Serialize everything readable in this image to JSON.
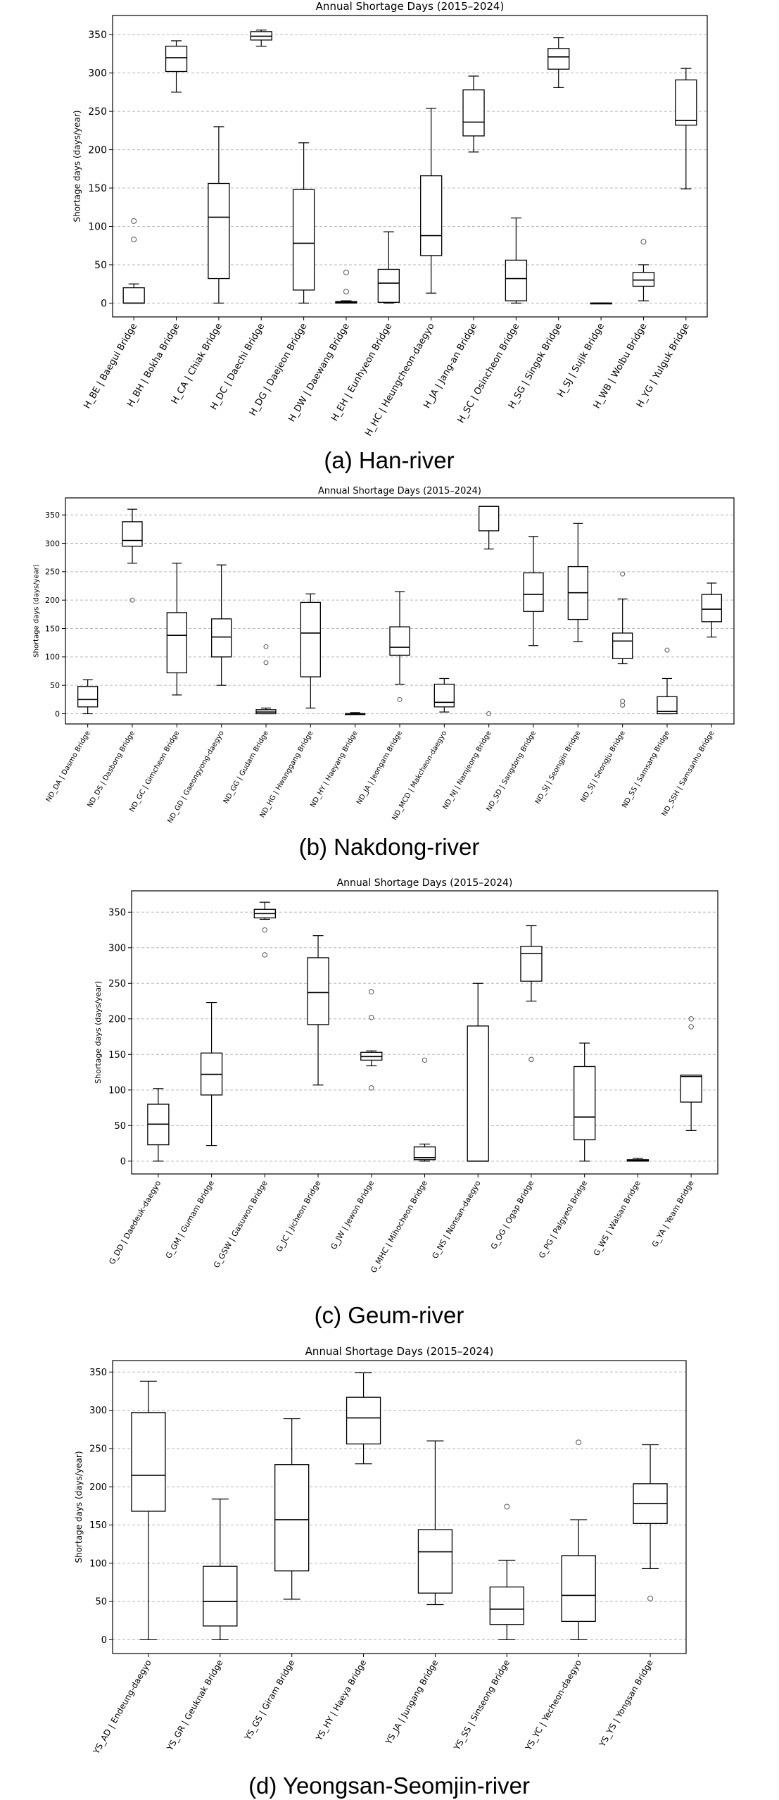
{
  "chart_data": [
    {
      "type": "box",
      "title": "Annual Shortage Days (2015–2024)",
      "ylabel": "Shortage days (days/year)",
      "ylim": [
        -18,
        375
      ],
      "yticks": [
        0,
        50,
        100,
        150,
        200,
        250,
        300,
        350
      ],
      "grid": "horizontal dashed",
      "caption": "(a)  Han-river",
      "categories": [
        "H_BE | Baegui Bridge",
        "H_BH | Bokha Bridge",
        "H_CA | Chiak Bridge",
        "H_DC | Daechi Bridge",
        "H_DG | Daejeon Bridge",
        "H_DW | Daewang Bridge",
        "H_EH | Eunhyeon Bridge",
        "H_HC | Heungcheon-daegyo",
        "H_JA | Jang-an Bridge",
        "H_SC | Osincheon Bridge",
        "H_SG | Singok Bridge",
        "H_SJ | Sujik Bridge",
        "H_WB | Wolbu Bridge",
        "H_YG | Yulguk Bridge"
      ],
      "boxes": [
        {
          "whislo": 0,
          "q1": 0,
          "med": 0,
          "q3": 20,
          "whishi": 25,
          "fliers": [
            83,
            107
          ]
        },
        {
          "whislo": 275,
          "q1": 302,
          "med": 320,
          "q3": 335,
          "whishi": 342,
          "fliers": []
        },
        {
          "whislo": 0,
          "q1": 32,
          "med": 112,
          "q3": 156,
          "whishi": 230,
          "fliers": []
        },
        {
          "whislo": 335,
          "q1": 343,
          "med": 348,
          "q3": 354,
          "whishi": 356,
          "fliers": []
        },
        {
          "whislo": 0,
          "q1": 17,
          "med": 78,
          "q3": 148,
          "whishi": 209,
          "fliers": []
        },
        {
          "whislo": 0,
          "q1": 0,
          "med": 1,
          "q3": 2,
          "whishi": 3,
          "fliers": [
            15,
            40
          ]
        },
        {
          "whislo": 0,
          "q1": 1,
          "med": 26,
          "q3": 44,
          "whishi": 93,
          "fliers": []
        },
        {
          "whislo": 13,
          "q1": 62,
          "med": 88,
          "q3": 166,
          "whishi": 254,
          "fliers": []
        },
        {
          "whislo": 197,
          "q1": 218,
          "med": 236,
          "q3": 278,
          "whishi": 296,
          "fliers": []
        },
        {
          "whislo": 0,
          "q1": 3,
          "med": 32,
          "q3": 56,
          "whishi": 111,
          "fliers": []
        },
        {
          "whislo": 281,
          "q1": 305,
          "med": 321,
          "q3": 332,
          "whishi": 346,
          "fliers": []
        },
        {
          "whislo": 0,
          "q1": 0,
          "med": 0,
          "q3": 0,
          "whishi": 0,
          "fliers": []
        },
        {
          "whislo": 3,
          "q1": 22,
          "med": 30,
          "q3": 40,
          "whishi": 50,
          "fliers": [
            80
          ]
        },
        {
          "whislo": 149,
          "q1": 232,
          "med": 238,
          "q3": 291,
          "whishi": 306,
          "fliers": []
        }
      ]
    },
    {
      "type": "box",
      "title": "Annual Shortage Days (2015–2024)",
      "ylabel": "Shortage days (days/year)",
      "ylim": [
        -18,
        380
      ],
      "yticks": [
        0,
        50,
        100,
        150,
        200,
        250,
        300,
        350
      ],
      "grid": "horizontal dashed",
      "caption": "(b)  Nakdong-river",
      "categories": [
        "ND_DA | Dasmo Bridge",
        "ND_DS | Dasbong Bridge",
        "ND_GC | Gimcheon Bridge",
        "ND_GD | Gaeongyong-daegyo",
        "ND_GG | Gudam Bridge",
        "ND_HG | Hwanggang Bridge",
        "ND_HY | Haeyang Bridge",
        "ND_JA | Jeongam Bridge",
        "ND_MCD | Makcheon-daegyo",
        "ND_NJ | Namjeong Bridge",
        "ND_SD | Sangdong Bridge",
        "ND_SJ | Seongjin Bridge",
        "ND_SJ | Seongju Bridge",
        "ND_SS | Samsang Bridge",
        "ND_SSH | Samsanho Bridge"
      ],
      "boxes": [
        {
          "whislo": 0,
          "q1": 12,
          "med": 25,
          "q3": 48,
          "whishi": 60,
          "fliers": []
        },
        {
          "whislo": 265,
          "q1": 295,
          "med": 305,
          "q3": 338,
          "whishi": 360,
          "fliers": [
            200
          ]
        },
        {
          "whislo": 33,
          "q1": 72,
          "med": 138,
          "q3": 178,
          "whishi": 265,
          "fliers": []
        },
        {
          "whislo": 50,
          "q1": 100,
          "med": 135,
          "q3": 167,
          "whishi": 262,
          "fliers": []
        },
        {
          "whislo": 0,
          "q1": 0,
          "med": 3,
          "q3": 7,
          "whishi": 10,
          "fliers": [
            90,
            118
          ]
        },
        {
          "whislo": 10,
          "q1": 65,
          "med": 142,
          "q3": 196,
          "whishi": 211,
          "fliers": []
        },
        {
          "whislo": 0,
          "q1": 0,
          "med": 0,
          "q3": 0,
          "whishi": 2,
          "fliers": []
        },
        {
          "whislo": 52,
          "q1": 103,
          "med": 117,
          "q3": 153,
          "whishi": 215,
          "fliers": [
            25
          ]
        },
        {
          "whislo": 3,
          "q1": 12,
          "med": 20,
          "q3": 52,
          "whishi": 62,
          "fliers": []
        },
        {
          "whislo": 290,
          "q1": 322,
          "med": 365,
          "q3": 365,
          "whishi": 365,
          "fliers": [
            0
          ]
        },
        {
          "whislo": 120,
          "q1": 180,
          "med": 210,
          "q3": 248,
          "whishi": 312,
          "fliers": []
        },
        {
          "whislo": 127,
          "q1": 166,
          "med": 213,
          "q3": 259,
          "whishi": 335,
          "fliers": []
        },
        {
          "whislo": 88,
          "q1": 97,
          "med": 128,
          "q3": 142,
          "whishi": 202,
          "fliers": [
            15,
            22,
            246
          ]
        },
        {
          "whislo": 0,
          "q1": 0,
          "med": 4,
          "q3": 30,
          "whishi": 62,
          "fliers": [
            112
          ]
        },
        {
          "whislo": 135,
          "q1": 162,
          "med": 184,
          "q3": 210,
          "whishi": 230,
          "fliers": []
        }
      ]
    },
    {
      "type": "box",
      "title": "Annual Shortage Days (2015–2024)",
      "ylabel": "Shortage days (days/year)",
      "ylim": [
        -18,
        380
      ],
      "yticks": [
        0,
        50,
        100,
        150,
        200,
        250,
        300,
        350
      ],
      "grid": "horizontal dashed",
      "caption": "(c)  Geum-river",
      "categories": [
        "G_DD | Daedeuk-daegyo",
        "G_GM | Gumam Bridge",
        "G_GSW | Gasuwon Bridge",
        "G_JC | Jicheon Bridge",
        "G_JW | Jewon Bridge",
        "G_MHC | Mihocheon Bridge",
        "G_NS | Nonsan-daegyo",
        "G_OG | Ogap Bridge",
        "G_PG | Palgyeol Bridge",
        "G_WS | Walsan Bridge",
        "G_YA | Yeam Bridge"
      ],
      "boxes": [
        {
          "whislo": 0,
          "q1": 23,
          "med": 52,
          "q3": 80,
          "whishi": 102,
          "fliers": []
        },
        {
          "whislo": 22,
          "q1": 93,
          "med": 122,
          "q3": 152,
          "whishi": 223,
          "fliers": []
        },
        {
          "whislo": 340,
          "q1": 342,
          "med": 348,
          "q3": 354,
          "whishi": 364,
          "fliers": [
            290,
            325
          ]
        },
        {
          "whislo": 107,
          "q1": 192,
          "med": 237,
          "q3": 286,
          "whishi": 317,
          "fliers": []
        },
        {
          "whislo": 134,
          "q1": 142,
          "med": 147,
          "q3": 153,
          "whishi": 155,
          "fliers": [
            103,
            202,
            238
          ]
        },
        {
          "whislo": 0,
          "q1": 2,
          "med": 5,
          "q3": 20,
          "whishi": 24,
          "fliers": [
            142
          ]
        },
        {
          "whislo": 0,
          "q1": 0,
          "med": 0,
          "q3": 190,
          "whishi": 250,
          "fliers": []
        },
        {
          "whislo": 225,
          "q1": 253,
          "med": 292,
          "q3": 302,
          "whishi": 331,
          "fliers": [
            143
          ]
        },
        {
          "whislo": 0,
          "q1": 30,
          "med": 62,
          "q3": 133,
          "whishi": 166,
          "fliers": []
        },
        {
          "whislo": 0,
          "q1": 0,
          "med": 1,
          "q3": 2,
          "whishi": 4,
          "fliers": []
        },
        {
          "whislo": 43,
          "q1": 83,
          "med": 119,
          "q3": 121,
          "whishi": 121,
          "fliers": [
            189,
            200
          ]
        }
      ]
    },
    {
      "type": "box",
      "title": "Annual Shortage Days (2015–2024)",
      "ylabel": "Shortage days (days/year)",
      "ylim": [
        -18,
        365
      ],
      "yticks": [
        0,
        50,
        100,
        150,
        200,
        250,
        300,
        350
      ],
      "grid": "horizontal dashed",
      "caption": "(d)  Yeongsan-Seomjin-river",
      "categories": [
        "YS_AD | Endeung-daegyo",
        "YS_GR | Geuknak Bridge",
        "YS_GS | Giram Bridge",
        "YS_HY | Haeya Bridge",
        "YS_JA | Jungang Bridge",
        "YS_SS | Sinseong Bridge",
        "YS_YC | Yecheon-daegyo",
        "YS_YS | Yongsan Bridge"
      ],
      "boxes": [
        {
          "whislo": 0,
          "q1": 168,
          "med": 215,
          "q3": 297,
          "whishi": 338,
          "fliers": []
        },
        {
          "whislo": 0,
          "q1": 18,
          "med": 50,
          "q3": 96,
          "whishi": 184,
          "fliers": []
        },
        {
          "whislo": 53,
          "q1": 90,
          "med": 157,
          "q3": 229,
          "whishi": 289,
          "fliers": []
        },
        {
          "whislo": 230,
          "q1": 256,
          "med": 290,
          "q3": 317,
          "whishi": 349,
          "fliers": []
        },
        {
          "whislo": 46,
          "q1": 61,
          "med": 115,
          "q3": 144,
          "whishi": 260,
          "fliers": []
        },
        {
          "whislo": 0,
          "q1": 20,
          "med": 40,
          "q3": 69,
          "whishi": 104,
          "fliers": [
            174
          ]
        },
        {
          "whislo": 0,
          "q1": 24,
          "med": 58,
          "q3": 110,
          "whishi": 157,
          "fliers": [
            258
          ]
        },
        {
          "whislo": 93,
          "q1": 152,
          "med": 178,
          "q3": 204,
          "whishi": 255,
          "fliers": [
            54
          ]
        }
      ]
    }
  ]
}
